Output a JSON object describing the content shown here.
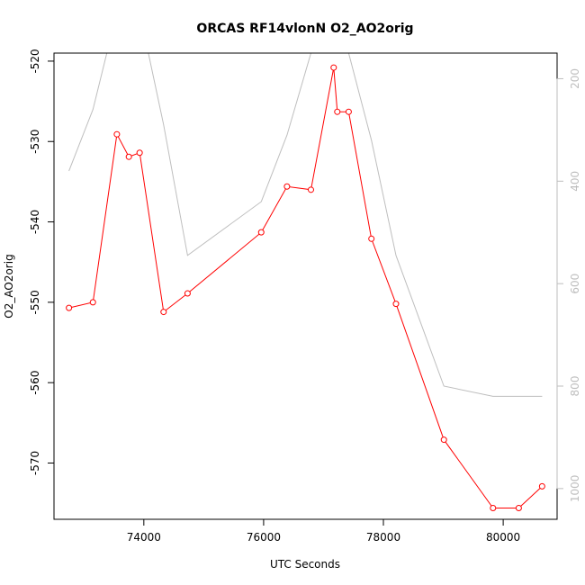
{
  "chart_data": {
    "type": "line",
    "title": "ORCAS RF14vlonN O2_AO2orig",
    "xlabel": "UTC Seconds",
    "ylabel": "O2_AO2orig",
    "xlim": [
      72500,
      80900
    ],
    "ylim": [
      -577,
      -519
    ],
    "y2lim": [
      1060,
      150
    ],
    "x_ticks": [
      74000,
      76000,
      78000,
      80000
    ],
    "y_ticks": [
      -570,
      -560,
      -550,
      -540,
      -530,
      -520
    ],
    "y2_ticks": [
      200,
      400,
      600,
      800,
      1000
    ],
    "grid": false,
    "legend": "none",
    "series": [
      {
        "axis": "left",
        "color": "#ff0000",
        "marker": "open-circle",
        "x": [
          72750,
          73150,
          73550,
          73750,
          73930,
          74330,
          74730,
          75960,
          76390,
          76790,
          77170,
          77230,
          77420,
          77800,
          78210,
          79010,
          79830,
          80260,
          80650
        ],
        "y": [
          -550.7,
          -550.0,
          -529.1,
          -531.9,
          -531.4,
          -551.2,
          -548.9,
          -541.3,
          -535.6,
          -536.0,
          -520.8,
          -526.3,
          -526.3,
          -542.1,
          -550.2,
          -567.1,
          -575.6,
          -575.6,
          -572.9
        ]
      },
      {
        "axis": "right",
        "color": "#bebebe",
        "marker": "none",
        "x": [
          72750,
          73150,
          73550,
          73930,
          74330,
          74730,
          75960,
          76390,
          76790,
          77170,
          77420,
          77800,
          78210,
          79010,
          79830,
          80260,
          80650
        ],
        "y": [
          380,
          260,
          70,
          70,
          290,
          545,
          440,
          310,
          150,
          150,
          150,
          320,
          545,
          800,
          820,
          820,
          820
        ]
      }
    ]
  }
}
